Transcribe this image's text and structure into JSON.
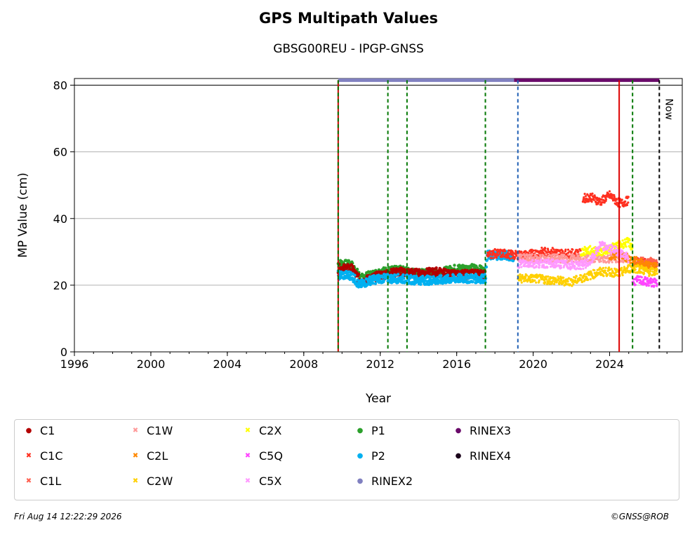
{
  "chart_data": {
    "type": "scatter",
    "title": "GPS Multipath Values",
    "subtitle": "GBSG00REU - IPGP-GNSS",
    "xlabel": "Year",
    "ylabel": "MP Value (cm)",
    "xlim": [
      1996,
      2027.8
    ],
    "ylim": [
      0,
      82
    ],
    "x_ticks": [
      1996,
      2000,
      2004,
      2008,
      2012,
      2016,
      2020,
      2024
    ],
    "y_ticks": [
      0,
      20,
      40,
      60,
      80
    ],
    "grid": "horizontal",
    "legend_placement": "bottom",
    "now_label": "Now",
    "vertical_lines": [
      {
        "x": 2009.8,
        "color": "#cc0000",
        "style": "solid"
      },
      {
        "x": 2009.8,
        "color": "#007700",
        "style": "dashed"
      },
      {
        "x": 2012.4,
        "color": "#007700",
        "style": "dashed"
      },
      {
        "x": 2013.4,
        "color": "#007700",
        "style": "dashed"
      },
      {
        "x": 2017.5,
        "color": "#007700",
        "style": "dashed"
      },
      {
        "x": 2019.2,
        "color": "#1f5fb4",
        "style": "dashed"
      },
      {
        "x": 2024.5,
        "color": "#dd0000",
        "style": "solid"
      },
      {
        "x": 2025.2,
        "color": "#007700",
        "style": "dashed"
      },
      {
        "x": 2026.6,
        "color": "#000000",
        "style": "dashed"
      }
    ],
    "rinex_bars": [
      {
        "name": "RINEX2",
        "x": [
          2009.8,
          2019.0
        ],
        "y": 81.5,
        "color": "#8080c0"
      },
      {
        "name": "RINEX3",
        "x": [
          2019.0,
          2026.6
        ],
        "y": 81.5,
        "color": "#6a0a6a"
      }
    ],
    "series": [
      {
        "name": "P1",
        "color": "#2ca02c",
        "marker": "dot",
        "points": [
          [
            2009.8,
            26.5
          ],
          [
            2010.5,
            26
          ],
          [
            2011.0,
            22
          ],
          [
            2012.0,
            24
          ],
          [
            2013.0,
            24.5
          ],
          [
            2014.0,
            23.5
          ],
          [
            2015.0,
            23.5
          ],
          [
            2016.0,
            25
          ],
          [
            2017.0,
            25
          ],
          [
            2017.5,
            24
          ]
        ]
      },
      {
        "name": "C1",
        "color": "#b30000",
        "marker": "dot",
        "points": [
          [
            2009.8,
            25
          ],
          [
            2010.5,
            25
          ],
          [
            2011.0,
            21
          ],
          [
            2012.0,
            23
          ],
          [
            2013.0,
            24
          ],
          [
            2014.0,
            23.5
          ],
          [
            2015.0,
            24
          ],
          [
            2016.0,
            23
          ],
          [
            2017.0,
            23.5
          ],
          [
            2017.5,
            23
          ]
        ]
      },
      {
        "name": "P2",
        "color": "#00b0f0",
        "marker": "dot",
        "points": [
          [
            2009.8,
            23
          ],
          [
            2010.5,
            23
          ],
          [
            2010.9,
            20
          ],
          [
            2011.5,
            21.5
          ],
          [
            2012.0,
            22
          ],
          [
            2013.0,
            22
          ],
          [
            2014.0,
            21.5
          ],
          [
            2015.0,
            21.5
          ],
          [
            2016.0,
            22
          ],
          [
            2017.0,
            22
          ],
          [
            2017.5,
            22
          ],
          [
            2017.6,
            29
          ],
          [
            2018.0,
            29
          ],
          [
            2018.5,
            29
          ],
          [
            2019.0,
            28.5
          ]
        ]
      },
      {
        "name": "C1C",
        "color": "#ff3020",
        "marker": "x",
        "points": [
          [
            2017.6,
            29
          ],
          [
            2018.0,
            29.5
          ],
          [
            2018.5,
            29.5
          ],
          [
            2019.0,
            29
          ],
          [
            2019.5,
            29
          ],
          [
            2020.0,
            29.5
          ],
          [
            2020.5,
            30
          ],
          [
            2021.0,
            30
          ],
          [
            2021.5,
            29.5
          ],
          [
            2022.0,
            29.5
          ],
          [
            2022.5,
            29.5
          ],
          [
            2022.6,
            46
          ],
          [
            2023.0,
            46.5
          ],
          [
            2023.5,
            45
          ],
          [
            2024.0,
            47
          ],
          [
            2024.4,
            45
          ],
          [
            2024.6,
            44.5
          ],
          [
            2025.0,
            45.5
          ],
          [
            2025.2,
            27
          ],
          [
            2025.5,
            27
          ],
          [
            2026.0,
            26.5
          ],
          [
            2026.5,
            26
          ]
        ]
      },
      {
        "name": "C1W",
        "color": "#ff9999",
        "marker": "x",
        "points": [
          [
            2019.2,
            28
          ],
          [
            2020.0,
            28
          ],
          [
            2021.0,
            28
          ],
          [
            2022.0,
            28
          ],
          [
            2023.0,
            28
          ],
          [
            2024.0,
            28
          ],
          [
            2025.0,
            28
          ]
        ]
      },
      {
        "name": "C1L",
        "color": "#ff6050",
        "marker": "x",
        "points": [
          [
            2025.2,
            27
          ],
          [
            2025.8,
            27
          ],
          [
            2026.5,
            27
          ]
        ]
      },
      {
        "name": "C2L",
        "color": "#ff8800",
        "marker": "x",
        "points": [
          [
            2024.0,
            29
          ],
          [
            2024.5,
            29
          ],
          [
            2025.0,
            28
          ],
          [
            2025.5,
            27
          ],
          [
            2026.0,
            26
          ],
          [
            2026.5,
            25.5
          ]
        ]
      },
      {
        "name": "C2W",
        "color": "#ffd000",
        "marker": "x",
        "points": [
          [
            2019.2,
            22
          ],
          [
            2020.0,
            22
          ],
          [
            2021.0,
            21.5
          ],
          [
            2022.0,
            21
          ],
          [
            2022.5,
            22
          ],
          [
            2023.0,
            23
          ],
          [
            2023.5,
            24
          ],
          [
            2024.0,
            24
          ],
          [
            2024.5,
            23.5
          ],
          [
            2025.0,
            25
          ],
          [
            2025.5,
            25
          ],
          [
            2026.0,
            24
          ],
          [
            2026.5,
            24
          ]
        ]
      },
      {
        "name": "C2X",
        "color": "#ffff00",
        "marker": "x",
        "points": [
          [
            2022.5,
            30
          ],
          [
            2023.0,
            30.5
          ],
          [
            2023.5,
            30
          ],
          [
            2024.0,
            31
          ],
          [
            2024.5,
            32
          ],
          [
            2025.0,
            33
          ],
          [
            2025.2,
            31
          ]
        ]
      },
      {
        "name": "C5Q",
        "color": "#ff44ff",
        "marker": "x",
        "points": [
          [
            2025.2,
            21
          ],
          [
            2025.5,
            21.5
          ],
          [
            2026.0,
            21
          ],
          [
            2026.5,
            20.5
          ]
        ]
      },
      {
        "name": "C5X",
        "color": "#ff99ff",
        "marker": "x",
        "points": [
          [
            2019.2,
            26.5
          ],
          [
            2020.0,
            26.5
          ],
          [
            2021.0,
            26.5
          ],
          [
            2022.0,
            26
          ],
          [
            2022.5,
            26
          ],
          [
            2023.0,
            27
          ],
          [
            2023.5,
            32
          ],
          [
            2024.0,
            31
          ],
          [
            2024.5,
            30
          ],
          [
            2025.0,
            28
          ]
        ]
      }
    ]
  },
  "legend": {
    "items": [
      {
        "name": "C1",
        "color": "#b30000",
        "marker": "dot"
      },
      {
        "name": "C1C",
        "color": "#ff3020",
        "marker": "x"
      },
      {
        "name": "C1L",
        "color": "#ff6050",
        "marker": "x"
      },
      {
        "name": "C1W",
        "color": "#ff9999",
        "marker": "x"
      },
      {
        "name": "C2L",
        "color": "#ff8800",
        "marker": "x"
      },
      {
        "name": "C2W",
        "color": "#ffd000",
        "marker": "x"
      },
      {
        "name": "C2X",
        "color": "#ffff00",
        "marker": "x"
      },
      {
        "name": "C5Q",
        "color": "#ff44ff",
        "marker": "x"
      },
      {
        "name": "C5X",
        "color": "#ff99ff",
        "marker": "x"
      },
      {
        "name": "P1",
        "color": "#2ca02c",
        "marker": "dot"
      },
      {
        "name": "P2",
        "color": "#00b0f0",
        "marker": "dot"
      },
      {
        "name": "RINEX2",
        "color": "#8080c0",
        "marker": "dot"
      },
      {
        "name": "RINEX3",
        "color": "#6a0a6a",
        "marker": "dot"
      },
      {
        "name": "RINEX4",
        "color": "#1a001a",
        "marker": "dot"
      }
    ]
  },
  "footer": {
    "timestamp": "Fri Aug 14 12:22:29 2026",
    "copyright": "©GNSS@ROB"
  }
}
